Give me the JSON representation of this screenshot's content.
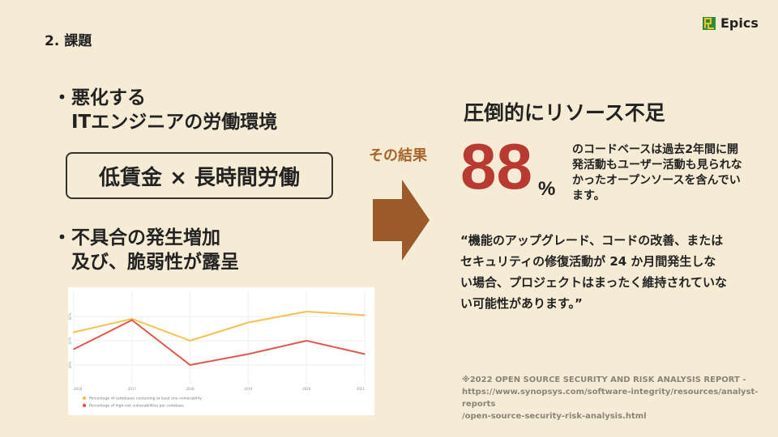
{
  "slide": {
    "title": "2. 課題",
    "logo_text": "Epics"
  },
  "left": {
    "bullet1": [
      "・悪化する",
      "　ITエンジニアの労働環境"
    ],
    "highlight": "低賃金 × 長時間労働",
    "bullet2": [
      "・不具合の発生増加",
      "　及び、脆弱性が露呈"
    ]
  },
  "middle": {
    "label": "その結果",
    "arrow": "right-arrow-icon"
  },
  "right": {
    "heading": "圧倒的にリソース不足",
    "stat_value": "88",
    "stat_unit": "%",
    "stat_desc": "のコードベースは過去2年間に開発活動もユーザー活動も見られなかったオープンソースを含んでいます。",
    "quote": "“機能のアップグレード、コードの改善、またはセキュリティの修復活動が 24 か月間発生しない場合、プロジェクトはまったく維持されていない可能性があります。”",
    "citation": [
      "※2022 OPEN SOURCE SECURITY AND RISK ANALYSIS REPORT -",
      "https://www.synopsys.com/software-integrity/resources/analyst-reports",
      "/open-source-security-risk-analysis.html"
    ]
  },
  "colors": {
    "background": "#f6ecd6",
    "accent": "#b83a30",
    "arrow": "#9a5a2a",
    "series1": "#f6c04f",
    "series2": "#e0584a"
  },
  "chart_data": {
    "type": "line",
    "categories": [
      "2016",
      "2017",
      "2018",
      "2019",
      "2020",
      "2021"
    ],
    "y_ticks": [
      "80%",
      "60%",
      "40%"
    ],
    "ylim": [
      30,
      100
    ],
    "grid": true,
    "legend": "bottom-left",
    "series": [
      {
        "name": "Percentage of codebases containing at least one vulnerability",
        "values": [
          67,
          78,
          60,
          75,
          84,
          81
        ]
      },
      {
        "name": "Percentage of high-risk vulnerabilities per codebase",
        "values": [
          53,
          77,
          40,
          49,
          60,
          49
        ]
      }
    ]
  }
}
